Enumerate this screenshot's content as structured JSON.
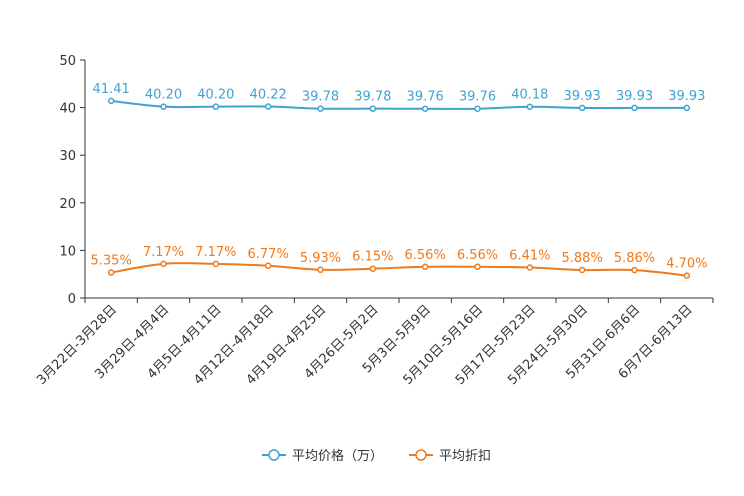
{
  "chart_data": {
    "type": "line",
    "title": "",
    "xlabel": "",
    "ylabel": "",
    "ylim": [
      0,
      50
    ],
    "yticks": [
      0,
      10,
      20,
      30,
      40,
      50
    ],
    "categories": [
      "3月22日-3月28日",
      "3月29日-4月4日",
      "4月5日-4月11日",
      "4月12日-4月18日",
      "4月19日-4月25日",
      "4月26日-5月2日",
      "5月3日-5月9日",
      "5月10日-5月16日",
      "5月17日-5月23日",
      "5月24日-5月30日",
      "5月31日-6月6日",
      "6月7日-6月13日"
    ],
    "series": [
      {
        "name": "平均价格（万）",
        "color": "#3fa3d1",
        "values": [
          41.41,
          40.2,
          40.2,
          40.22,
          39.78,
          39.78,
          39.76,
          39.76,
          40.18,
          39.93,
          39.93,
          39.93
        ],
        "labels": [
          "41.41",
          "40.20",
          "40.20",
          "40.22",
          "39.78",
          "39.78",
          "39.76",
          "39.76",
          "40.18",
          "39.93",
          "39.93",
          "39.93"
        ]
      },
      {
        "name": "平均折扣",
        "color": "#ef7a1c",
        "values": [
          5.35,
          7.17,
          7.17,
          6.77,
          5.93,
          6.15,
          6.56,
          6.56,
          6.41,
          5.88,
          5.86,
          4.7
        ],
        "labels": [
          "5.35%",
          "7.17%",
          "7.17%",
          "6.77%",
          "5.93%",
          "6.15%",
          "6.56%",
          "6.56%",
          "6.41%",
          "5.88%",
          "5.86%",
          "4.70%"
        ]
      }
    ],
    "legend_position": "bottom-center"
  }
}
